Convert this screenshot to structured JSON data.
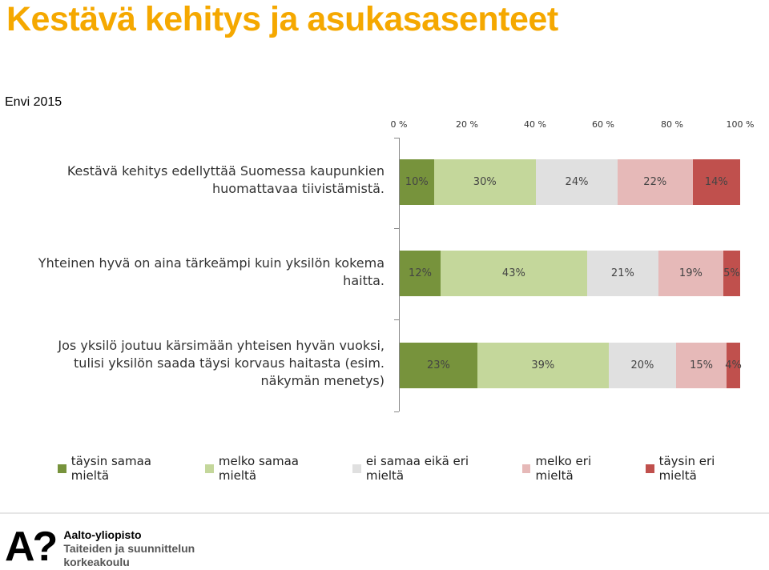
{
  "header": {
    "title": "Kestävä kehitys ja asukasasenteet",
    "subtitle": "Envi 2015"
  },
  "chart_data": {
    "type": "bar",
    "orientation": "horizontal",
    "stacked": true,
    "percent_stacked": true,
    "x_ticks": [
      "0 %",
      "20 %",
      "40 %",
      "60 %",
      "80 %",
      "100 %"
    ],
    "xlim": [
      0,
      100
    ],
    "categories": [
      [
        "Kestävä kehitys edellyttää Suomessa kaupunkien",
        "huomattavaa tiivistämistä."
      ],
      [
        "Yhteinen hyvä on aina tärkeämpi kuin yksilön kokema",
        "haitta."
      ],
      [
        "Jos yksilö joutuu kärsimään yhteisen hyvän vuoksi,",
        "tulisi yksilön saada täysi korvaus haitasta (esim.",
        "näkymän menetys)"
      ]
    ],
    "series": [
      {
        "name": "täysin samaa mieltä",
        "color": "#77933C",
        "values": [
          10,
          12,
          23
        ],
        "labels": [
          "10%",
          "12%",
          "23%"
        ]
      },
      {
        "name": "melko samaa mieltä",
        "color": "#C4D79B",
        "values": [
          30,
          43,
          39
        ],
        "labels": [
          "30%",
          "43%",
          "39%"
        ]
      },
      {
        "name": "ei samaa eikä eri mieltä",
        "color": "#E0E0E0",
        "values": [
          24,
          21,
          20
        ],
        "labels": [
          "24%",
          "21%",
          "20%"
        ]
      },
      {
        "name": "melko eri mieltä",
        "color": "#E6B9B8",
        "values": [
          22,
          19,
          15
        ],
        "labels": [
          "22%",
          "19%",
          "15%"
        ]
      },
      {
        "name": "täysin eri mieltä",
        "color": "#C0504D",
        "values": [
          14,
          5,
          4
        ],
        "labels": [
          "14%",
          "5%",
          "4%"
        ]
      }
    ],
    "legend_position": "bottom",
    "grid": false
  },
  "footer": {
    "logo_mark": "A?",
    "logo_line1": "Aalto-yliopisto",
    "logo_line2": "Taiteiden ja suunnittelun",
    "logo_line3": "korkeakoulu"
  }
}
